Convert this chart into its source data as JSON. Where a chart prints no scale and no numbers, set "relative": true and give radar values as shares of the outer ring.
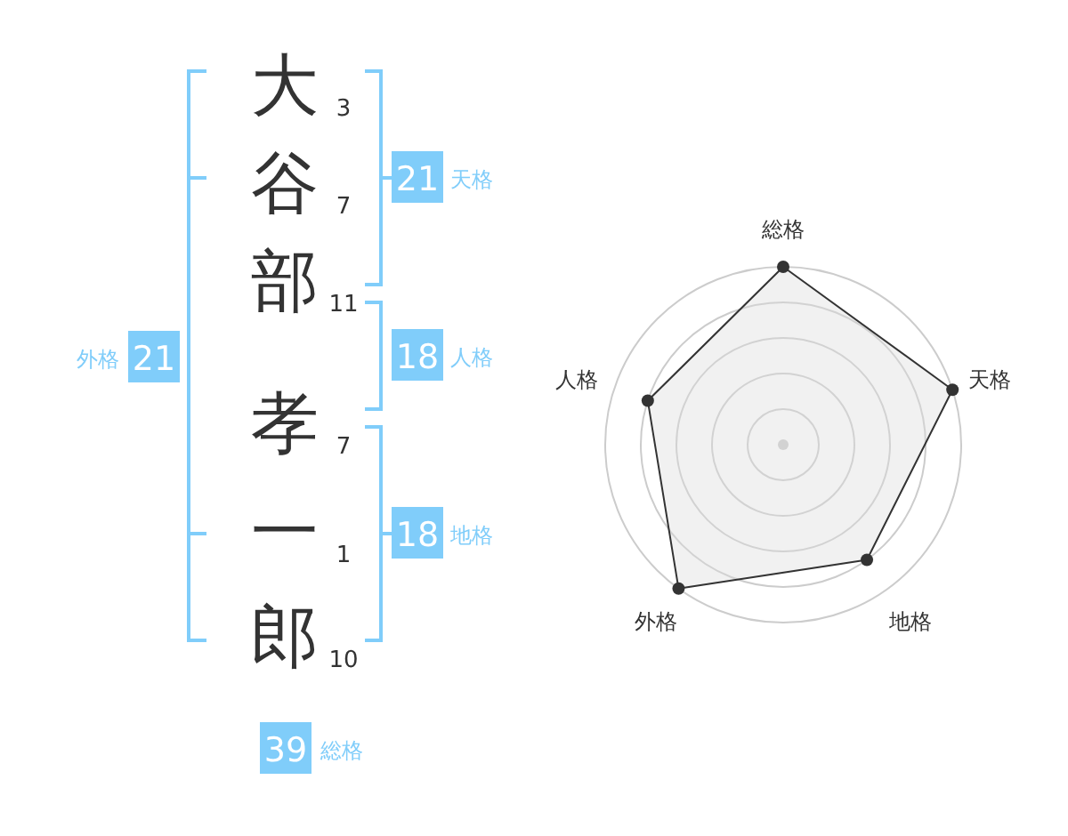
{
  "chart_data": [
    {
      "type": "other",
      "categories": [
        "大",
        "谷",
        "部",
        "孝",
        "一",
        "郎"
      ],
      "values": [
        3,
        7,
        11,
        7,
        1,
        10
      ],
      "data_labels": true,
      "annotations": [
        "21",
        "天格",
        "18",
        "人格",
        "18",
        "地格",
        "21",
        "外格",
        "39",
        "総格"
      ]
    },
    {
      "type": "radar",
      "categories": [
        "総格",
        "天格",
        "地格",
        "外格",
        "人格"
      ],
      "relative": true,
      "grid": true,
      "marker": "circle",
      "series": [
        {
          "color": "#333333",
          "values": [
            1,
            1,
            0.8,
            1,
            0.8
          ]
        }
      ]
    }
  ]
}
